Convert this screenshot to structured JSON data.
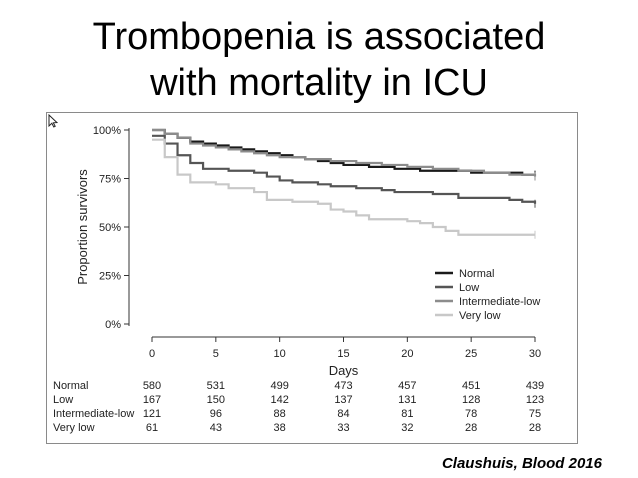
{
  "slide": {
    "title_line1": "Trombopenia is associated",
    "title_line2": "with mortality in ICU",
    "citation": "Claushuis, Blood 2016"
  },
  "chart_data": {
    "type": "line",
    "chart_subtype": "kaplan-meier step curve",
    "xlabel": "Days",
    "ylabel": "Proportion survivors",
    "xlim": [
      0,
      30
    ],
    "ylim": [
      0,
      100
    ],
    "x_ticks": [
      0,
      5,
      10,
      15,
      20,
      25,
      30
    ],
    "y_ticks": [
      {
        "value": 0,
        "label": "0%"
      },
      {
        "value": 25,
        "label": "25%"
      },
      {
        "value": 50,
        "label": "50%"
      },
      {
        "value": 75,
        "label": "75%"
      },
      {
        "value": 100,
        "label": "100%"
      }
    ],
    "grid": false,
    "legend_position": "bottom-right",
    "series": [
      {
        "name": "Normal",
        "color": "#1a1a1a",
        "points": [
          [
            0,
            100
          ],
          [
            1,
            98
          ],
          [
            2,
            96
          ],
          [
            3,
            94
          ],
          [
            4,
            93
          ],
          [
            5,
            92
          ],
          [
            6,
            91
          ],
          [
            7,
            90
          ],
          [
            8,
            89
          ],
          [
            9,
            88
          ],
          [
            10,
            87
          ],
          [
            11,
            86
          ],
          [
            12,
            85
          ],
          [
            13,
            84
          ],
          [
            14,
            83
          ],
          [
            15,
            82
          ],
          [
            17,
            81
          ],
          [
            19,
            80
          ],
          [
            21,
            79
          ],
          [
            23,
            79
          ],
          [
            25,
            78
          ],
          [
            27,
            78
          ],
          [
            29,
            77
          ],
          [
            30,
            77
          ]
        ]
      },
      {
        "name": "Low",
        "color": "#555555",
        "points": [
          [
            0,
            97
          ],
          [
            1,
            93
          ],
          [
            2,
            87
          ],
          [
            3,
            83
          ],
          [
            4,
            80
          ],
          [
            6,
            79
          ],
          [
            8,
            78
          ],
          [
            9,
            76
          ],
          [
            10,
            74
          ],
          [
            11,
            73
          ],
          [
            13,
            72
          ],
          [
            14,
            71
          ],
          [
            16,
            70
          ],
          [
            18,
            69
          ],
          [
            19,
            68
          ],
          [
            22,
            67
          ],
          [
            24,
            65
          ],
          [
            28,
            64
          ],
          [
            29,
            63
          ],
          [
            30,
            62
          ]
        ]
      },
      {
        "name": "Intermediate-low",
        "color": "#8c8c8c",
        "points": [
          [
            0,
            100
          ],
          [
            1,
            98
          ],
          [
            2,
            96
          ],
          [
            3,
            93
          ],
          [
            4,
            92
          ],
          [
            5,
            91
          ],
          [
            6,
            90
          ],
          [
            7,
            89
          ],
          [
            8,
            88
          ],
          [
            9,
            87
          ],
          [
            10,
            86
          ],
          [
            12,
            85
          ],
          [
            14,
            84
          ],
          [
            16,
            83
          ],
          [
            18,
            82
          ],
          [
            20,
            81
          ],
          [
            22,
            80
          ],
          [
            24,
            79
          ],
          [
            26,
            78
          ],
          [
            28,
            77
          ],
          [
            30,
            76
          ]
        ]
      },
      {
        "name": "Very low",
        "color": "#c8c8c8",
        "points": [
          [
            0,
            95
          ],
          [
            1,
            86
          ],
          [
            2,
            77
          ],
          [
            3,
            73
          ],
          [
            5,
            72
          ],
          [
            6,
            70
          ],
          [
            8,
            68
          ],
          [
            9,
            64
          ],
          [
            11,
            63
          ],
          [
            13,
            62
          ],
          [
            14,
            59
          ],
          [
            15,
            58
          ],
          [
            16,
            56
          ],
          [
            17,
            54
          ],
          [
            20,
            53
          ],
          [
            21,
            52
          ],
          [
            22,
            50
          ],
          [
            23,
            48
          ],
          [
            24,
            46
          ],
          [
            30,
            46
          ]
        ]
      }
    ],
    "risk_table": {
      "days": [
        0,
        5,
        10,
        15,
        20,
        25,
        30
      ],
      "rows": [
        {
          "label": "Normal",
          "values": [
            580,
            531,
            499,
            473,
            457,
            451,
            439
          ]
        },
        {
          "label": "Low",
          "values": [
            167,
            150,
            142,
            137,
            131,
            128,
            123
          ]
        },
        {
          "label": "Intermediate-low",
          "values": [
            121,
            96,
            88,
            84,
            81,
            78,
            75
          ]
        },
        {
          "label": "Very low",
          "values": [
            61,
            43,
            38,
            33,
            32,
            28,
            28
          ]
        }
      ]
    }
  }
}
